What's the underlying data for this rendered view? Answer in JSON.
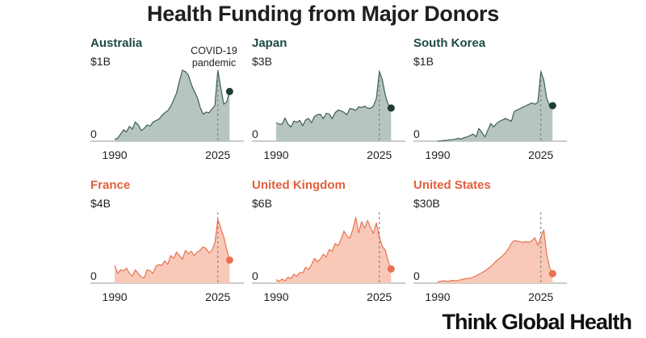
{
  "title": "Health Funding from Major Donors",
  "brand": "Think Global Health",
  "annotation": {
    "line1": "COVID-19",
    "line2": "pandemic"
  },
  "colors": {
    "green_area": "#b6c5c1",
    "green_line": "#3c5e57",
    "green_dot": "#1d3c36",
    "green_label": "#1d4a43",
    "orange_area": "#f8c9b8",
    "orange_line": "#e8734f",
    "orange_dot": "#e8734f",
    "orange_label": "#e25f3c"
  },
  "chart_data": [
    {
      "type": "area",
      "title": "Australia",
      "max_label": "$1B",
      "zero_label": "0",
      "x_ticks": [
        "1990",
        "2025"
      ],
      "xlim": [
        1990,
        2030
      ],
      "ylim": [
        0,
        1
      ],
      "marker_year": 2025,
      "color": "green",
      "x": [
        1990,
        1991,
        1992,
        1993,
        1994,
        1995,
        1996,
        1997,
        1998,
        1999,
        2000,
        2001,
        2002,
        2003,
        2004,
        2005,
        2006,
        2007,
        2008,
        2009,
        2010,
        2011,
        2012,
        2013,
        2014,
        2015,
        2016,
        2017,
        2018,
        2019,
        2020,
        2021,
        2022,
        2023,
        2024,
        2025,
        2026,
        2027,
        2028,
        2029
      ],
      "values": [
        0.03,
        0.04,
        0.1,
        0.16,
        0.13,
        0.21,
        0.17,
        0.27,
        0.23,
        0.15,
        0.18,
        0.23,
        0.21,
        0.27,
        0.29,
        0.31,
        0.36,
        0.4,
        0.43,
        0.49,
        0.58,
        0.68,
        0.85,
        1.0,
        0.98,
        0.93,
        0.8,
        0.7,
        0.62,
        0.48,
        0.38,
        0.41,
        0.4,
        0.45,
        0.5,
        1.0,
        0.75,
        0.52,
        0.55,
        0.7
      ]
    },
    {
      "type": "area",
      "title": "Japan",
      "max_label": "$3B",
      "zero_label": "0",
      "x_ticks": [
        "1990",
        "2025"
      ],
      "xlim": [
        1990,
        2030
      ],
      "ylim": [
        0,
        3
      ],
      "marker_year": 2025,
      "color": "green",
      "x": [
        1990,
        1991,
        1992,
        1993,
        1994,
        1995,
        1996,
        1997,
        1998,
        1999,
        2000,
        2001,
        2002,
        2003,
        2004,
        2005,
        2006,
        2007,
        2008,
        2009,
        2010,
        2011,
        2012,
        2013,
        2014,
        2015,
        2016,
        2017,
        2018,
        2019,
        2020,
        2021,
        2022,
        2023,
        2024,
        2025,
        2026,
        2027,
        2028,
        2029
      ],
      "values": [
        0.78,
        0.72,
        0.72,
        0.98,
        0.72,
        0.6,
        0.85,
        0.8,
        0.88,
        0.65,
        0.9,
        0.96,
        0.78,
        1.05,
        1.12,
        1.14,
        0.95,
        1.18,
        1.15,
        0.95,
        1.2,
        1.32,
        1.28,
        1.22,
        1.12,
        1.38,
        1.36,
        1.3,
        1.45,
        1.42,
        1.48,
        1.4,
        1.38,
        1.48,
        1.8,
        2.95,
        2.6,
        1.95,
        1.55,
        1.4
      ]
    },
    {
      "type": "area",
      "title": "South Korea",
      "max_label": "$1B",
      "zero_label": "0",
      "x_ticks": [
        "1990",
        "2025"
      ],
      "xlim": [
        1990,
        2030
      ],
      "ylim": [
        0,
        1
      ],
      "marker_year": 2025,
      "color": "green",
      "x": [
        1990,
        1991,
        1992,
        1993,
        1994,
        1995,
        1996,
        1997,
        1998,
        1999,
        2000,
        2001,
        2002,
        2003,
        2004,
        2005,
        2006,
        2007,
        2008,
        2009,
        2010,
        2011,
        2012,
        2013,
        2014,
        2015,
        2016,
        2017,
        2018,
        2019,
        2020,
        2021,
        2022,
        2023,
        2024,
        2025,
        2026,
        2027,
        2028,
        2029
      ],
      "values": [
        0.0,
        0.0,
        0.01,
        0.01,
        0.02,
        0.02,
        0.03,
        0.04,
        0.03,
        0.05,
        0.06,
        0.08,
        0.1,
        0.06,
        0.18,
        0.12,
        0.06,
        0.15,
        0.25,
        0.2,
        0.25,
        0.28,
        0.3,
        0.32,
        0.3,
        0.28,
        0.42,
        0.44,
        0.46,
        0.48,
        0.5,
        0.52,
        0.54,
        0.52,
        0.55,
        0.98,
        0.86,
        0.6,
        0.5,
        0.5
      ]
    },
    {
      "type": "area",
      "title": "France",
      "max_label": "$4B",
      "zero_label": "0",
      "x_ticks": [
        "1990",
        "2025"
      ],
      "xlim": [
        1990,
        2030
      ],
      "ylim": [
        0,
        4
      ],
      "marker_year": 2025,
      "color": "orange",
      "x": [
        1990,
        1991,
        1992,
        1993,
        1994,
        1995,
        1996,
        1997,
        1998,
        1999,
        2000,
        2001,
        2002,
        2003,
        2004,
        2005,
        2006,
        2007,
        2008,
        2009,
        2010,
        2011,
        2012,
        2013,
        2014,
        2015,
        2016,
        2017,
        2018,
        2019,
        2020,
        2021,
        2022,
        2023,
        2024,
        2025,
        2026,
        2027,
        2028,
        2029
      ],
      "values": [
        1.0,
        0.55,
        0.75,
        0.7,
        0.85,
        0.55,
        0.4,
        0.75,
        0.55,
        0.35,
        0.3,
        0.75,
        0.7,
        0.55,
        0.95,
        1.05,
        1.0,
        1.25,
        1.05,
        1.55,
        1.4,
        1.75,
        1.55,
        1.35,
        1.85,
        1.65,
        1.8,
        1.55,
        1.75,
        1.85,
        2.05,
        1.95,
        1.7,
        1.85,
        2.25,
        3.6,
        3.1,
        2.6,
        1.9,
        1.3
      ]
    },
    {
      "type": "area",
      "title": "United Kingdom",
      "max_label": "$6B",
      "zero_label": "0",
      "x_ticks": [
        "1990",
        "2025"
      ],
      "xlim": [
        1990,
        2030
      ],
      "ylim": [
        0,
        6
      ],
      "marker_year": 2025,
      "color": "orange",
      "x": [
        1990,
        1991,
        1992,
        1993,
        1994,
        1995,
        1996,
        1997,
        1998,
        1999,
        2000,
        2001,
        2002,
        2003,
        2004,
        2005,
        2006,
        2007,
        2008,
        2009,
        2010,
        2011,
        2012,
        2013,
        2014,
        2015,
        2016,
        2017,
        2018,
        2019,
        2020,
        2021,
        2022,
        2023,
        2024,
        2025,
        2026,
        2027,
        2028,
        2029
      ],
      "values": [
        0.3,
        0.15,
        0.35,
        0.2,
        0.5,
        0.4,
        0.75,
        0.6,
        0.9,
        0.85,
        1.35,
        1.15,
        1.55,
        2.1,
        1.8,
        2.05,
        2.45,
        2.2,
        2.85,
        2.7,
        3.35,
        3.15,
        3.7,
        4.4,
        4.0,
        3.8,
        4.55,
        5.55,
        4.25,
        5.2,
        4.65,
        5.3,
        4.7,
        4.2,
        5.1,
        3.9,
        3.1,
        2.8,
        1.85,
        1.2
      ]
    },
    {
      "type": "area",
      "title": "United States",
      "max_label": "$30B",
      "zero_label": "0",
      "x_ticks": [
        "1990",
        "2025"
      ],
      "xlim": [
        1990,
        2030
      ],
      "ylim": [
        0,
        30
      ],
      "marker_year": 2025,
      "color": "orange",
      "x": [
        1990,
        1991,
        1992,
        1993,
        1994,
        1995,
        1996,
        1997,
        1998,
        1999,
        2000,
        2001,
        2002,
        2003,
        2004,
        2005,
        2006,
        2007,
        2008,
        2009,
        2010,
        2011,
        2012,
        2013,
        2014,
        2015,
        2016,
        2017,
        2018,
        2019,
        2020,
        2021,
        2022,
        2023,
        2024,
        2025,
        2026,
        2027,
        2028,
        2029
      ],
      "values": [
        0.5,
        0.8,
        1.0,
        0.8,
        0.9,
        1.2,
        1.0,
        1.1,
        1.5,
        1.7,
        2.0,
        2.1,
        2.5,
        3.1,
        3.8,
        4.4,
        5.2,
        6.0,
        7.0,
        8.2,
        9.5,
        10.5,
        11.5,
        12.8,
        14.5,
        16.8,
        18.0,
        17.8,
        17.5,
        17.2,
        17.6,
        17.2,
        18.0,
        19.2,
        16.0,
        19.5,
        22.5,
        12.0,
        6.5,
        4.0
      ]
    }
  ]
}
